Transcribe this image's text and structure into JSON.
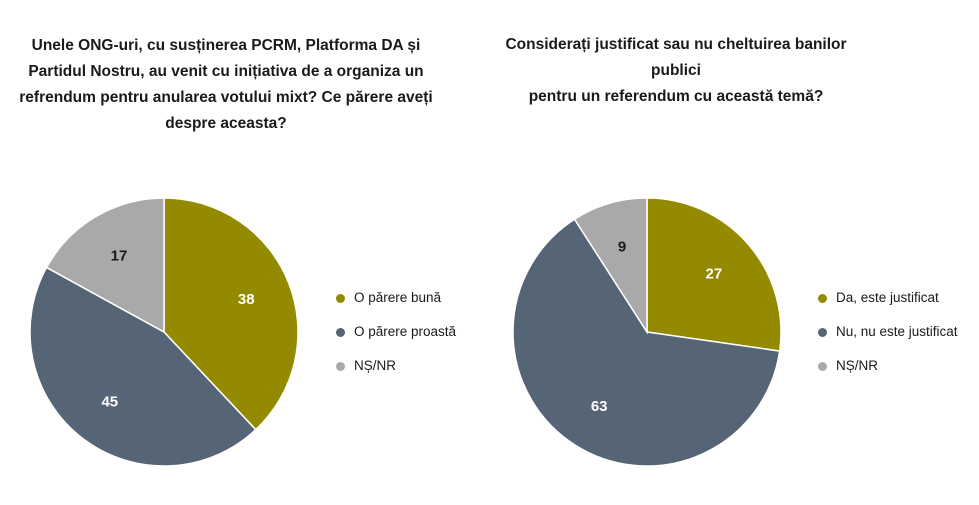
{
  "chart_data": [
    {
      "type": "pie",
      "title": "Unele ONG-uri, cu susținerea PCRM, Platforma DA și\nPartidul Nostru, au venit cu inițiativa de a organiza un\nrefrendum pentru anularea votului mixt? Ce părere aveți\ndespre aceasta?",
      "categories": [
        "O părere bună",
        "O părere proastă",
        "NȘ/NR"
      ],
      "values": [
        38,
        45,
        17
      ],
      "colors": [
        "#948a00",
        "#556575",
        "#a9a9a9"
      ],
      "label_colors": [
        "#ffffff",
        "#ffffff",
        "#1a1a1a"
      ],
      "legend_position": "right"
    },
    {
      "type": "pie",
      "title": "Considerați justificat sau nu cheltuirea banilor publici\npentru un referendum cu această temă?",
      "categories": [
        "Da, este justificat",
        "Nu, nu este justificat",
        "NȘ/NR"
      ],
      "values": [
        27,
        63,
        9
      ],
      "colors": [
        "#948a00",
        "#556575",
        "#a9a9a9"
      ],
      "label_colors": [
        "#ffffff",
        "#ffffff",
        "#1a1a1a"
      ],
      "legend_position": "right"
    }
  ]
}
